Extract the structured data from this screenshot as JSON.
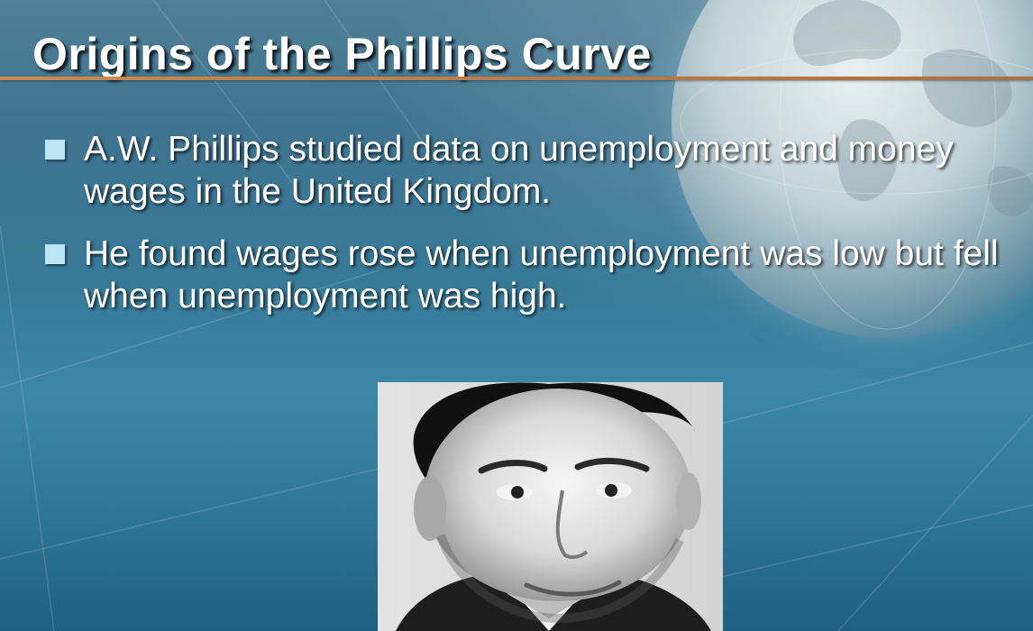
{
  "slide": {
    "title": "Origins of the Phillips Curve",
    "bullets": [
      {
        "text": "A.W. Phillips studied data on unemployment and money wages in the United Kingdom."
      },
      {
        "text": "He found wages rose when unemployment was low but fell when unemployment was high."
      }
    ],
    "portrait": {
      "subject": "A.W. Phillips"
    }
  },
  "colors": {
    "background": "#377a98",
    "title_text": "#ffffff",
    "title_rule": "#c98a52",
    "bullet_marker": "#b9e6f5",
    "body_text": "#ffffff"
  }
}
